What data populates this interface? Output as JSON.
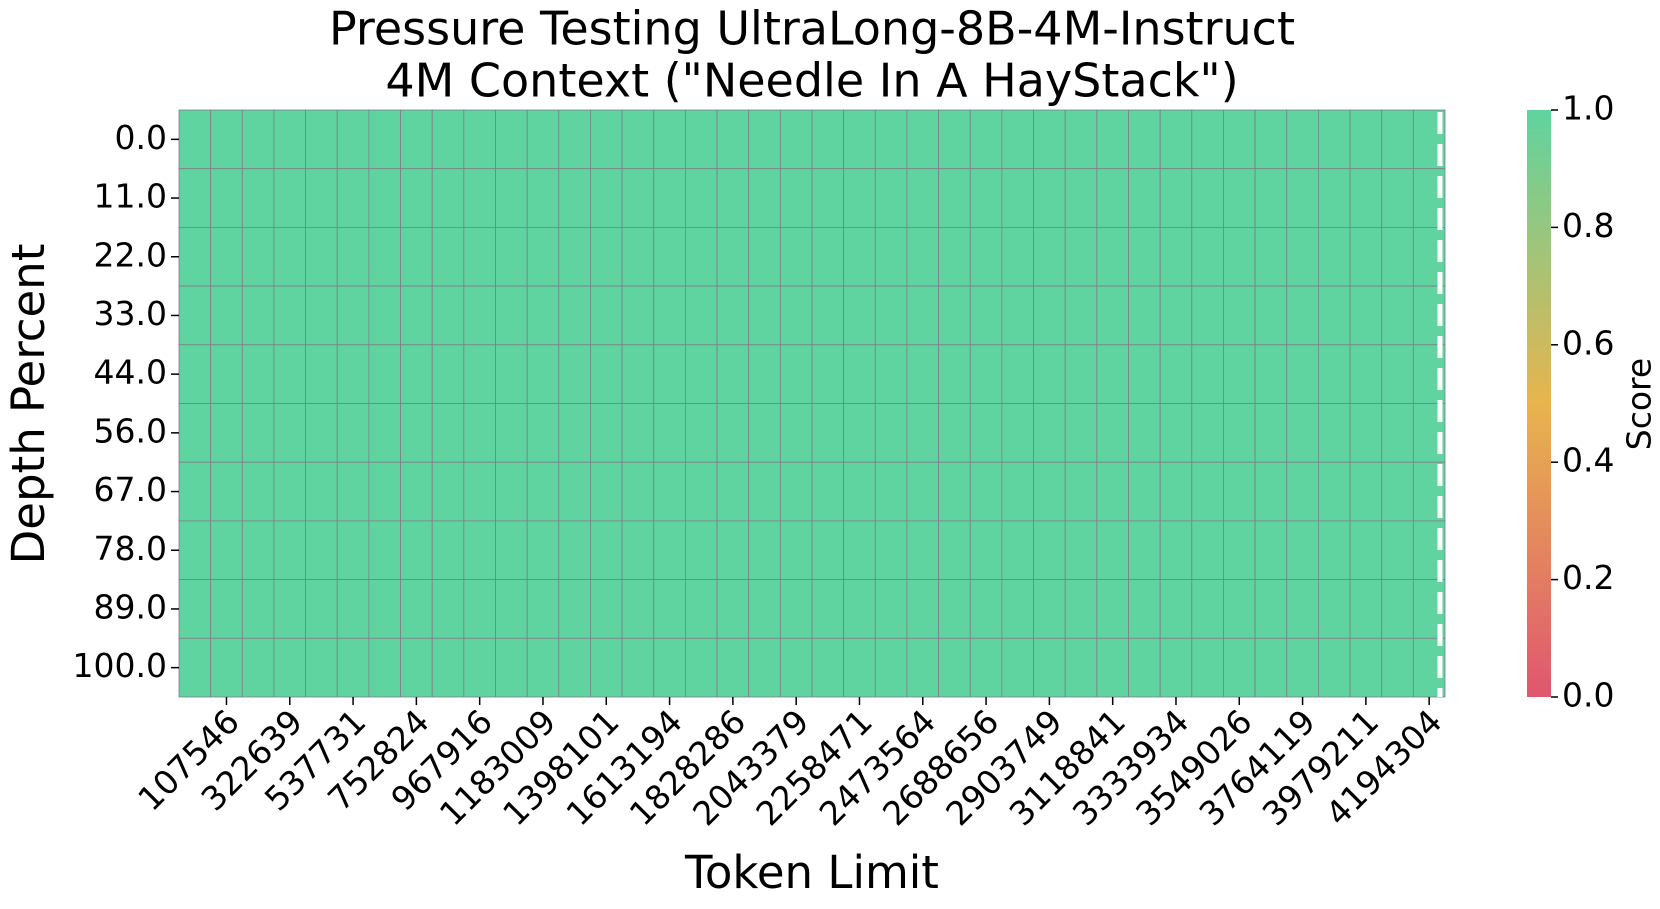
{
  "chart_data": {
    "type": "heatmap",
    "title": [
      "Pressure Testing UltraLong-8B-4M-Instruct",
      "4M Context (\"Needle In A HayStack\")"
    ],
    "x_label": "Token Limit",
    "y_label": "Depth Percent",
    "colorbar_label": "Score",
    "categories": [
      null,
      "107546",
      null,
      "322639",
      null,
      "537731",
      null,
      "752824",
      null,
      "967916",
      null,
      "1183009",
      null,
      "1398101",
      null,
      "1613194",
      null,
      "1828286",
      null,
      "2043379",
      null,
      "2258471",
      null,
      "2473564",
      null,
      "2688656",
      null,
      "2903749",
      null,
      "3118841",
      null,
      "3333934",
      null,
      "3549026",
      null,
      "3764119",
      null,
      "3979211",
      null,
      "4194304"
    ],
    "rows": [
      "0.0",
      "11.0",
      "22.0",
      "33.0",
      "44.0",
      "56.0",
      "67.0",
      "78.0",
      "89.0",
      "100.0"
    ],
    "values": [
      [
        1,
        1,
        1,
        1,
        1,
        1,
        1,
        1,
        1,
        1,
        1,
        1,
        1,
        1,
        1,
        1,
        1,
        1,
        1,
        1,
        1,
        1,
        1,
        1,
        1,
        1,
        1,
        1,
        1,
        1,
        1,
        1,
        1,
        1,
        1,
        1,
        1,
        1,
        1,
        1
      ],
      [
        1,
        1,
        1,
        1,
        1,
        1,
        1,
        1,
        1,
        1,
        1,
        1,
        1,
        1,
        1,
        1,
        1,
        1,
        1,
        1,
        1,
        1,
        1,
        1,
        1,
        1,
        1,
        1,
        1,
        1,
        1,
        1,
        1,
        1,
        1,
        1,
        1,
        1,
        1,
        1
      ],
      [
        1,
        1,
        1,
        1,
        1,
        1,
        1,
        1,
        1,
        1,
        1,
        1,
        1,
        1,
        1,
        1,
        1,
        1,
        1,
        1,
        1,
        1,
        1,
        1,
        1,
        1,
        1,
        1,
        1,
        1,
        1,
        1,
        1,
        1,
        1,
        1,
        1,
        1,
        1,
        1
      ],
      [
        1,
        1,
        1,
        1,
        1,
        1,
        1,
        1,
        1,
        1,
        1,
        1,
        1,
        1,
        1,
        1,
        1,
        1,
        1,
        1,
        1,
        1,
        1,
        1,
        1,
        1,
        1,
        1,
        1,
        1,
        1,
        1,
        1,
        1,
        1,
        1,
        1,
        1,
        1,
        1
      ],
      [
        1,
        1,
        1,
        1,
        1,
        1,
        1,
        1,
        1,
        1,
        1,
        1,
        1,
        1,
        1,
        1,
        1,
        1,
        1,
        1,
        1,
        1,
        1,
        1,
        1,
        1,
        1,
        1,
        1,
        1,
        1,
        1,
        1,
        1,
        1,
        1,
        1,
        1,
        1,
        1
      ],
      [
        1,
        1,
        1,
        1,
        1,
        1,
        1,
        1,
        1,
        1,
        1,
        1,
        1,
        1,
        1,
        1,
        1,
        1,
        1,
        1,
        1,
        1,
        1,
        1,
        1,
        1,
        1,
        1,
        1,
        1,
        1,
        1,
        1,
        1,
        1,
        1,
        1,
        1,
        1,
        1
      ],
      [
        1,
        1,
        1,
        1,
        1,
        1,
        1,
        1,
        1,
        1,
        1,
        1,
        1,
        1,
        1,
        1,
        1,
        1,
        1,
        1,
        1,
        1,
        1,
        1,
        1,
        1,
        1,
        1,
        1,
        1,
        1,
        1,
        1,
        1,
        1,
        1,
        1,
        1,
        1,
        1
      ],
      [
        1,
        1,
        1,
        1,
        1,
        1,
        1,
        1,
        1,
        1,
        1,
        1,
        1,
        1,
        1,
        1,
        1,
        1,
        1,
        1,
        1,
        1,
        1,
        1,
        1,
        1,
        1,
        1,
        1,
        1,
        1,
        1,
        1,
        1,
        1,
        1,
        1,
        1,
        1,
        1
      ],
      [
        1,
        1,
        1,
        1,
        1,
        1,
        1,
        1,
        1,
        1,
        1,
        1,
        1,
        1,
        1,
        1,
        1,
        1,
        1,
        1,
        1,
        1,
        1,
        1,
        1,
        1,
        1,
        1,
        1,
        1,
        1,
        1,
        1,
        1,
        1,
        1,
        1,
        1,
        1,
        1
      ],
      [
        1,
        1,
        1,
        1,
        1,
        1,
        1,
        1,
        1,
        1,
        1,
        1,
        1,
        1,
        1,
        1,
        1,
        1,
        1,
        1,
        1,
        1,
        1,
        1,
        1,
        1,
        1,
        1,
        1,
        1,
        1,
        1,
        1,
        1,
        1,
        1,
        1,
        1,
        1,
        1
      ]
    ],
    "colorscale": [
      "#e0566f",
      "#e8b44e",
      "#5fd3a0"
    ],
    "zlim": [
      0,
      1
    ],
    "zticks": [
      {
        "value": 0,
        "label": "0.0"
      },
      {
        "value": 0.2,
        "label": "0.2"
      },
      {
        "value": 0.4,
        "label": "0.4"
      },
      {
        "value": 0.6,
        "label": "0.6"
      },
      {
        "value": 0.8,
        "label": "0.8"
      },
      {
        "value": 1,
        "label": "1.0"
      }
    ]
  }
}
